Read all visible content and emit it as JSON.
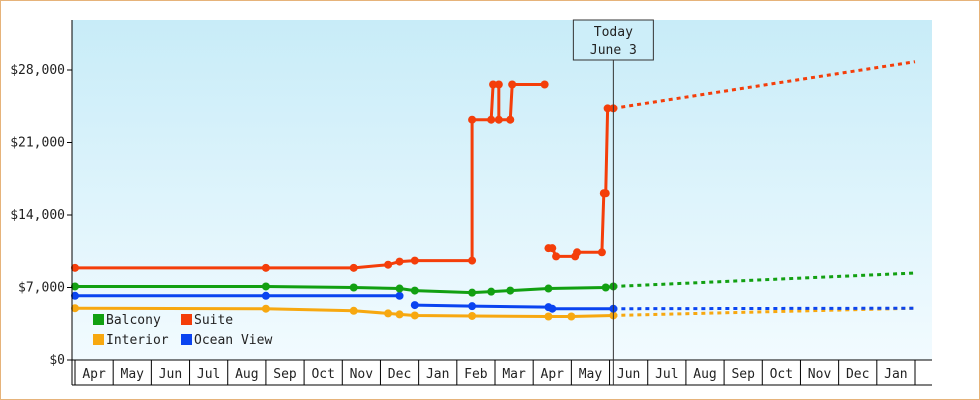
{
  "chart_data": {
    "type": "line",
    "title": "",
    "xlabel": "",
    "ylabel": "",
    "ylim": [
      0,
      33000
    ],
    "y_ticks": [
      {
        "value": 0,
        "label": "$0"
      },
      {
        "value": 7000,
        "label": "$7,000"
      },
      {
        "value": 14000,
        "label": "$14,000"
      },
      {
        "value": 21000,
        "label": "$21,000"
      },
      {
        "value": 28000,
        "label": "$28,000"
      }
    ],
    "x_months": [
      "Apr",
      "May",
      "Jun",
      "Jul",
      "Aug",
      "Sep",
      "Oct",
      "Nov",
      "Dec",
      "Jan",
      "Feb",
      "Mar",
      "Apr",
      "May",
      "Jun",
      "Jul",
      "Aug",
      "Sep",
      "Oct",
      "Nov",
      "Dec",
      "Jan"
    ],
    "xlim": [
      0,
      22
    ],
    "grid": false,
    "background_gradient": [
      "#c8ecf8",
      "#f2fbff"
    ],
    "today_marker": {
      "x": 14.1,
      "line1": "Today",
      "line2": "June 3"
    },
    "legend_placement": "bottom-left",
    "series": [
      {
        "name": "Suite",
        "color": "#f43e0a",
        "segments": [
          [
            [
              0,
              8900
            ],
            [
              5,
              8900
            ],
            [
              7.3,
              8900
            ],
            [
              8.2,
              9200
            ],
            [
              8.5,
              9500
            ],
            [
              8.9,
              9600
            ],
            [
              10.4,
              9600
            ],
            [
              10.4,
              23200
            ],
            [
              10.9,
              23200
            ],
            [
              10.95,
              26600
            ],
            [
              11.1,
              26600
            ],
            [
              11.1,
              23200
            ],
            [
              11.4,
              23200
            ],
            [
              11.45,
              26600
            ],
            [
              12.3,
              26600
            ]
          ],
          [
            [
              12.4,
              10800
            ],
            [
              12.5,
              10800
            ],
            [
              12.6,
              10000
            ],
            [
              13.1,
              10000
            ],
            [
              13.15,
              10400
            ],
            [
              13.8,
              10400
            ],
            [
              13.85,
              16100
            ],
            [
              13.9,
              16100
            ],
            [
              13.95,
              24300
            ],
            [
              14.1,
              24300
            ]
          ]
        ],
        "markers": [
          [
            0,
            8900
          ],
          [
            5,
            8900
          ],
          [
            7.3,
            8900
          ],
          [
            8.2,
            9200
          ],
          [
            8.5,
            9500
          ],
          [
            8.9,
            9600
          ],
          [
            10.4,
            9600
          ],
          [
            10.4,
            23200
          ],
          [
            10.9,
            23200
          ],
          [
            10.95,
            26600
          ],
          [
            11.1,
            26600
          ],
          [
            11.1,
            23200
          ],
          [
            11.4,
            23200
          ],
          [
            11.45,
            26600
          ],
          [
            12.3,
            26600
          ],
          [
            12.4,
            10800
          ],
          [
            12.5,
            10800
          ],
          [
            12.6,
            10000
          ],
          [
            13.1,
            10000
          ],
          [
            13.15,
            10400
          ],
          [
            13.8,
            10400
          ],
          [
            13.85,
            16100
          ],
          [
            13.9,
            16100
          ],
          [
            13.95,
            24300
          ],
          [
            14.1,
            24300
          ]
        ],
        "projection": [
          [
            14.1,
            24300
          ],
          [
            22,
            28800
          ]
        ]
      },
      {
        "name": "Balcony",
        "color": "#12a012",
        "segments": [
          [
            [
              0,
              7100
            ],
            [
              5,
              7100
            ],
            [
              7.3,
              7000
            ],
            [
              8.5,
              6900
            ],
            [
              8.9,
              6700
            ],
            [
              10.4,
              6500
            ],
            [
              10.9,
              6600
            ],
            [
              11.4,
              6700
            ],
            [
              12.4,
              6900
            ],
            [
              13.9,
              7000
            ],
            [
              14.1,
              7100
            ]
          ]
        ],
        "markers": [
          [
            0,
            7100
          ],
          [
            5,
            7100
          ],
          [
            7.3,
            7000
          ],
          [
            8.5,
            6900
          ],
          [
            8.9,
            6700
          ],
          [
            10.4,
            6500
          ],
          [
            10.9,
            6600
          ],
          [
            11.4,
            6700
          ],
          [
            12.4,
            6900
          ],
          [
            13.9,
            7000
          ],
          [
            14.1,
            7100
          ]
        ],
        "projection": [
          [
            14.1,
            7100
          ],
          [
            22,
            8400
          ]
        ]
      },
      {
        "name": "Interior",
        "color": "#f7a810",
        "segments": [
          [
            [
              0,
              5000
            ],
            [
              5,
              4950
            ],
            [
              7.3,
              4750
            ],
            [
              8.2,
              4500
            ],
            [
              8.5,
              4400
            ],
            [
              8.9,
              4300
            ],
            [
              10.4,
              4250
            ],
            [
              12.4,
              4200
            ],
            [
              13,
              4200
            ],
            [
              14.1,
              4300
            ]
          ]
        ],
        "markers": [
          [
            0,
            5000
          ],
          [
            5,
            4950
          ],
          [
            7.3,
            4750
          ],
          [
            8.2,
            4500
          ],
          [
            8.5,
            4400
          ],
          [
            8.9,
            4300
          ],
          [
            10.4,
            4250
          ],
          [
            12.4,
            4200
          ],
          [
            13,
            4200
          ],
          [
            14.1,
            4300
          ]
        ],
        "projection": [
          [
            14.1,
            4300
          ],
          [
            22,
            5000
          ]
        ]
      },
      {
        "name": "Ocean View",
        "color": "#0a44f0",
        "segments": [
          [
            [
              0,
              6200
            ],
            [
              5,
              6200
            ],
            [
              8.5,
              6200
            ]
          ],
          [
            [
              8.9,
              5300
            ],
            [
              10.4,
              5200
            ],
            [
              12.4,
              5100
            ],
            [
              12.5,
              4950
            ],
            [
              14.1,
              4950
            ]
          ]
        ],
        "markers": [
          [
            0,
            6200
          ],
          [
            5,
            6200
          ],
          [
            8.5,
            6200
          ],
          [
            8.9,
            5300
          ],
          [
            10.4,
            5200
          ],
          [
            12.4,
            5100
          ],
          [
            12.5,
            4950
          ],
          [
            14.1,
            4950
          ]
        ],
        "projection": [
          [
            14.1,
            4950
          ],
          [
            22,
            5000
          ]
        ]
      }
    ],
    "legend": [
      {
        "name": "Balcony",
        "color": "#12a012"
      },
      {
        "name": "Suite",
        "color": "#f43e0a"
      },
      {
        "name": "Interior",
        "color": "#f7a810"
      },
      {
        "name": "Ocean View",
        "color": "#0a44f0"
      }
    ]
  }
}
